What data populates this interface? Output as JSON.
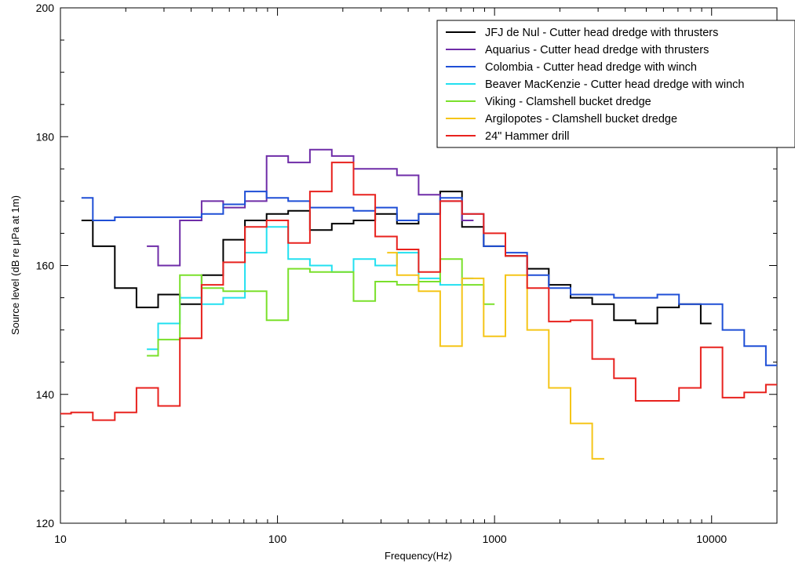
{
  "chart_data": {
    "type": "line",
    "step": true,
    "xscale": "log",
    "xlabel": "Frequency(Hz)",
    "ylabel": "Source level (dB re μPa at 1m)",
    "xlim": [
      10,
      20000
    ],
    "ylim": [
      120,
      200
    ],
    "x_ticks": [
      10,
      100,
      1000,
      10000
    ],
    "x_tick_labels": [
      "10",
      "100",
      "1000",
      "10000"
    ],
    "y_ticks": [
      120,
      140,
      160,
      180,
      200
    ],
    "y_tick_labels": [
      "120",
      "140",
      "160",
      "180",
      "200"
    ],
    "grid": false,
    "legend_position": "top-right",
    "series": [
      {
        "name": "JFJ de Nul - Cutter head dredge with thrusters",
        "color": "#000000",
        "edges": [
          12.5,
          14.1,
          17.8,
          22.4,
          28.2,
          35.5,
          44.7,
          56.2,
          70.8,
          89.1,
          112,
          141,
          178,
          224,
          282,
          355,
          447,
          562,
          708,
          891,
          1122,
          1413,
          1778,
          2239,
          2818,
          3548,
          4467,
          5623,
          7079,
          8913,
          10000
        ],
        "values": [
          167,
          163,
          156.5,
          153.5,
          155.5,
          154,
          158.5,
          164,
          167,
          168,
          168.5,
          165.5,
          166.5,
          167,
          168,
          166.5,
          168,
          171.5,
          166,
          163,
          161.5,
          159.5,
          157,
          155,
          154,
          151.5,
          151,
          153.5,
          154,
          151
        ]
      },
      {
        "name": "Aquarius - Cutter head dredge with thrusters",
        "color": "#6f2da8",
        "edges": [
          25,
          28.2,
          35.5,
          44.7,
          56.2,
          70.8,
          89.1,
          112,
          141,
          178,
          224,
          282,
          355,
          447,
          562,
          708,
          800
        ],
        "values": [
          163,
          160,
          167,
          170,
          169,
          170,
          177,
          176,
          178,
          177,
          175,
          175,
          174,
          171,
          170,
          167
        ]
      },
      {
        "name": "Colombia - Cutter head dredge with winch",
        "color": "#1f4fd6",
        "edges": [
          12.5,
          14.1,
          17.8,
          22.4,
          28.2,
          35.5,
          44.7,
          56.2,
          70.8,
          89.1,
          112,
          141,
          178,
          224,
          282,
          355,
          447,
          562,
          708,
          891,
          1122,
          1413,
          1778,
          2239,
          2818,
          3548,
          4467,
          5623,
          7079,
          8913,
          11220,
          14130,
          17780,
          20000
        ],
        "values": [
          170.5,
          167,
          167.5,
          167.5,
          167.5,
          167.5,
          168,
          169.5,
          171.5,
          170.5,
          170,
          169,
          169,
          168.5,
          169,
          167,
          168,
          170.5,
          168,
          163,
          162,
          158.5,
          156.5,
          155.5,
          155.5,
          155,
          155,
          155.5,
          154,
          154,
          150,
          147.5,
          144.5
        ]
      },
      {
        "name": "Beaver MacKenzie - Cutter head dredge with winch",
        "color": "#22e0f0",
        "edges": [
          25,
          28.2,
          35.5,
          44.7,
          56.2,
          70.8,
          89.1,
          112,
          141,
          178,
          224,
          282,
          355,
          447,
          562,
          708,
          800
        ],
        "values": [
          147,
          151,
          155,
          154,
          155,
          162,
          166,
          161,
          160,
          159,
          161,
          160,
          162,
          158,
          157,
          158
        ]
      },
      {
        "name": "Viking - Clamshell bucket dredge",
        "color": "#7ae02b",
        "edges": [
          25,
          28.2,
          35.5,
          44.7,
          56.2,
          70.8,
          89.1,
          112,
          141,
          178,
          224,
          282,
          355,
          447,
          562,
          708,
          891,
          1000
        ],
        "values": [
          146,
          148.5,
          158.5,
          156.5,
          156,
          156,
          151.5,
          159.5,
          159,
          159,
          154.5,
          157.5,
          157,
          157.5,
          161,
          157,
          154
        ]
      },
      {
        "name": "Argilopotes - Clamshell bucket dredge",
        "color": "#f5c518",
        "edges": [
          320,
          355,
          447,
          562,
          708,
          891,
          1122,
          1413,
          1778,
          2239,
          2818,
          3200
        ],
        "values": [
          162,
          158.5,
          156,
          147.5,
          158,
          149,
          158.5,
          150,
          141,
          135.5,
          130
        ]
      },
      {
        "name": "24\" Hammer drill",
        "color": "#e8221e",
        "edges": [
          10,
          11.2,
          14.1,
          17.8,
          22.4,
          28.2,
          35.5,
          44.7,
          56.2,
          70.8,
          89.1,
          112,
          141,
          178,
          224,
          282,
          355,
          447,
          562,
          708,
          891,
          1122,
          1413,
          1778,
          2239,
          2818,
          3548,
          4467,
          5623,
          7079,
          8913,
          11220,
          14130,
          17780,
          20000
        ],
        "values": [
          137,
          137.2,
          136,
          137.2,
          141,
          138.2,
          148.7,
          157,
          160.5,
          166,
          167,
          163.5,
          171.5,
          176,
          171,
          164.5,
          162.5,
          159,
          170,
          168,
          165,
          161.5,
          156.5,
          151.3,
          151.5,
          145.5,
          142.5,
          139,
          139,
          141,
          147.3,
          139.5,
          140.3,
          141.5
        ]
      }
    ]
  }
}
